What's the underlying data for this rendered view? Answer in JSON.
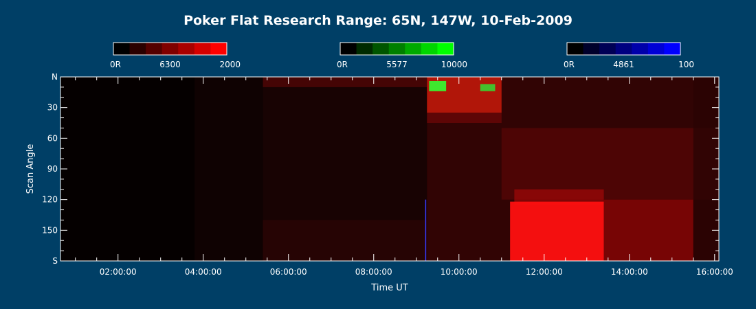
{
  "chart_data": {
    "type": "heatmap",
    "title": "Poker Flat Research Range: 65N, 147W, 10-Feb-2009",
    "xlabel": "Time UT",
    "ylabel": "Scan Angle",
    "x_range_hours": [
      0.65,
      16.1
    ],
    "x_ticks": [
      {
        "hour": 2,
        "label": "02:00:00"
      },
      {
        "hour": 4,
        "label": "04:00:00"
      },
      {
        "hour": 6,
        "label": "06:00:00"
      },
      {
        "hour": 8,
        "label": "08:00:00"
      },
      {
        "hour": 10,
        "label": "10:00:00"
      },
      {
        "hour": 12,
        "label": "12:00:00"
      },
      {
        "hour": 14,
        "label": "14:00:00"
      },
      {
        "hour": 16,
        "label": "16:00:00"
      }
    ],
    "y_range": [
      0,
      180
    ],
    "y_ticks": [
      {
        "value": 0,
        "label": "N"
      },
      {
        "value": 30,
        "label": "30"
      },
      {
        "value": 60,
        "label": "60"
      },
      {
        "value": 90,
        "label": "90"
      },
      {
        "value": 120,
        "label": "120"
      },
      {
        "value": 150,
        "label": "150"
      },
      {
        "value": 180,
        "label": "S"
      }
    ],
    "colorbars": [
      {
        "channel": "6300",
        "color": "#ff0000",
        "min_label": "0R",
        "mid_label": "6300",
        "max_label": "2000"
      },
      {
        "channel": "5577",
        "color": "#00ff00",
        "min_label": "0R",
        "mid_label": "5577",
        "max_label": "10000"
      },
      {
        "channel": "4861",
        "color": "#0000ff",
        "min_label": "0R",
        "mid_label": "4861",
        "max_label": "100"
      }
    ],
    "regions": [
      {
        "t0": 3.8,
        "t1": 5.4,
        "a0": 0,
        "a1": 180,
        "color": "#140303",
        "opacity": 0.7
      },
      {
        "t0": 5.4,
        "t1": 9.25,
        "a0": 0,
        "a1": 180,
        "color": "#1c0404",
        "opacity": 0.85
      },
      {
        "t0": 5.4,
        "t1": 9.25,
        "a0": 0,
        "a1": 10,
        "color": "#4a0606",
        "opacity": 0.9
      },
      {
        "t0": 5.4,
        "t1": 9.25,
        "a0": 140,
        "a1": 180,
        "color": "#300505",
        "opacity": 0.6
      },
      {
        "t0": 9.25,
        "t1": 16.1,
        "a0": 0,
        "a1": 180,
        "color": "#3a0505",
        "opacity": 0.85
      },
      {
        "t0": 9.25,
        "t1": 11.0,
        "a0": 0,
        "a1": 35,
        "color": "#c81a0a",
        "opacity": 0.85
      },
      {
        "t0": 9.25,
        "t1": 11.0,
        "a0": 35,
        "a1": 45,
        "color": "#6a0808",
        "opacity": 0.8
      },
      {
        "t0": 11.0,
        "t1": 16.1,
        "a0": 50,
        "a1": 120,
        "color": "#5a0606",
        "opacity": 0.7
      },
      {
        "t0": 11.3,
        "t1": 13.4,
        "a0": 110,
        "a1": 125,
        "color": "#b00808",
        "opacity": 0.6
      },
      {
        "t0": 11.2,
        "t1": 13.4,
        "a0": 122,
        "a1": 180,
        "color": "#ff1010",
        "opacity": 0.95
      },
      {
        "t0": 13.4,
        "t1": 15.5,
        "a0": 120,
        "a1": 180,
        "color": "#8a0606",
        "opacity": 0.8
      },
      {
        "t0": 15.5,
        "t1": 16.1,
        "a0": 0,
        "a1": 180,
        "color": "#2a0404",
        "opacity": 0.8
      },
      {
        "t0": 9.3,
        "t1": 9.7,
        "a0": 4,
        "a1": 14,
        "color": "#33ff33",
        "opacity": 0.9
      },
      {
        "t0": 10.5,
        "t1": 10.85,
        "a0": 7,
        "a1": 14,
        "color": "#33dd33",
        "opacity": 0.85
      }
    ],
    "lines": [
      {
        "t": 9.22,
        "a0": 120,
        "a1": 180,
        "color": "#3a3aff"
      }
    ]
  }
}
